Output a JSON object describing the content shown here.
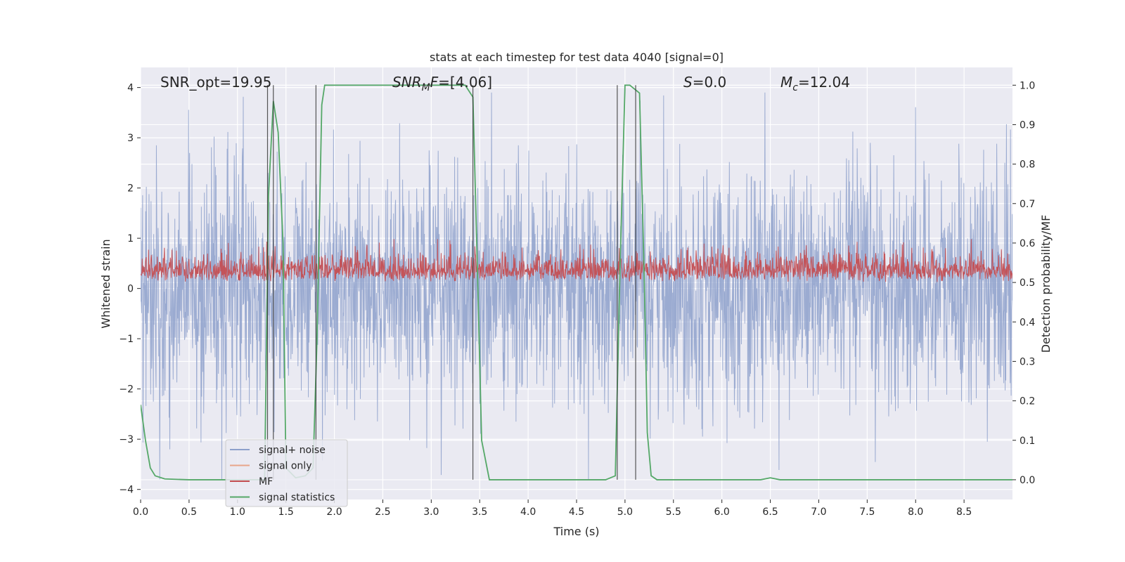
{
  "chart_data": {
    "type": "line",
    "title": "stats at each timestep for test data 4040 [signal=0]",
    "xlabel": "Time (s)",
    "ylabel_left": "Whitened strain",
    "ylabel_right": "Detection probability/MF",
    "xlim": [
      0,
      9.0
    ],
    "ylim_left": [
      -4.2,
      4.4
    ],
    "ylim_right": [
      -0.05,
      1.045
    ],
    "xticks": [
      "0.0",
      "0.5",
      "1.0",
      "1.5",
      "2.0",
      "2.5",
      "3.0",
      "3.5",
      "4.0",
      "4.5",
      "5.0",
      "5.5",
      "6.0",
      "6.5",
      "7.0",
      "7.5",
      "8.0",
      "8.5"
    ],
    "xtick_values": [
      0,
      0.5,
      1,
      1.5,
      2,
      2.5,
      3,
      3.5,
      4,
      4.5,
      5,
      5.5,
      6,
      6.5,
      7,
      7.5,
      8,
      8.5
    ],
    "yticks_left": [
      "−4",
      "−3",
      "−2",
      "−1",
      "0",
      "1",
      "2",
      "3",
      "4"
    ],
    "ytick_values_left": [
      -4,
      -3,
      -2,
      -1,
      0,
      1,
      2,
      3,
      4
    ],
    "yticks_right": [
      "0.0",
      "0.1",
      "0.2",
      "0.3",
      "0.4",
      "0.5",
      "0.6",
      "0.7",
      "0.8",
      "0.9",
      "1.0"
    ],
    "ytick_values_right": [
      0,
      0.1,
      0.2,
      0.3,
      0.4,
      0.5,
      0.6,
      0.7,
      0.8,
      0.9,
      1.0
    ],
    "annotations": {
      "snr_opt": "SNR_opt=19.95",
      "snr_mf_label": "SNR",
      "snr_mf_sub": "M",
      "snr_mf_after_sub": "F",
      "snr_mf_value": "=[4.06]",
      "s_label": "S",
      "s_value": "=0.0",
      "mc_label": "M",
      "mc_sub": "c",
      "mc_value": "=12.04"
    },
    "legend": {
      "placement": "lower-left",
      "entries": [
        {
          "label": "signal+ noise",
          "color": "#8da0cb"
        },
        {
          "label": "signal only",
          "color": "#e8a58a"
        },
        {
          "label": "MF",
          "color": "#c44e52"
        },
        {
          "label": "signal statistics",
          "color": "#55a868"
        }
      ]
    },
    "series": [
      {
        "name": "signal+ noise",
        "axis": "left",
        "color": "#8da0cb",
        "description": "whitened strain noise, envelope approx -2.2 to 2.2 with spikes to about -3.8 and 3.9"
      },
      {
        "name": "MF",
        "axis": "right",
        "color": "#c44e52",
        "range": [
          0.5,
          0.61
        ]
      },
      {
        "name": "signal statistics",
        "axis": "right",
        "color": "#55a868",
        "x": [
          0.0,
          0.05,
          0.1,
          0.15,
          0.25,
          0.5,
          1.0,
          1.28,
          1.32,
          1.37,
          1.42,
          1.47,
          1.5,
          1.6,
          1.7,
          1.78,
          1.82,
          1.87,
          1.9,
          2.0,
          2.5,
          3.0,
          3.2,
          3.35,
          3.43,
          3.48,
          3.52,
          3.6,
          4.0,
          4.5,
          4.8,
          4.9,
          4.95,
          5.0,
          5.05,
          5.1,
          5.15,
          5.2,
          5.23,
          5.27,
          5.33,
          6.0,
          6.4,
          6.5,
          6.6,
          7.0,
          8.0,
          9.0
        ],
        "y": [
          0.19,
          0.1,
          0.03,
          0.01,
          0.002,
          0.0,
          0.0,
          0.0,
          0.72,
          0.96,
          0.88,
          0.6,
          0.03,
          0.005,
          0.01,
          0.03,
          0.35,
          0.95,
          1.0,
          1.0,
          1.0,
          1.0,
          1.0,
          1.0,
          0.97,
          0.5,
          0.1,
          0.0,
          0.0,
          0.0,
          0.0,
          0.01,
          0.55,
          1.0,
          1.0,
          0.99,
          0.98,
          0.5,
          0.12,
          0.01,
          0.0,
          0.0,
          0.0,
          0.005,
          0.0,
          0.0,
          0.0,
          0.0
        ]
      }
    ],
    "vertical_lines": [
      1.31,
      1.37,
      1.81,
      3.43,
      4.92,
      5.11
    ]
  }
}
